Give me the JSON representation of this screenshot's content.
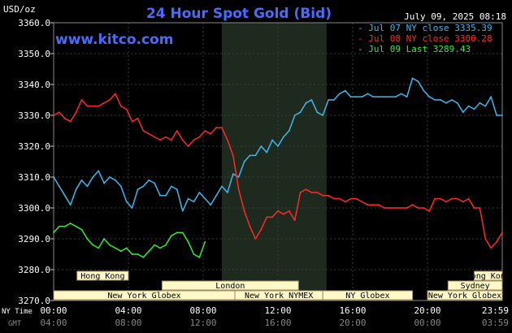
{
  "header": {
    "unit": "USD/oz",
    "title": "24 Hour Spot Gold (Bid)",
    "datetime": "July 09, 2025 08:18",
    "watermark": "www.kitco.com"
  },
  "legend": [
    {
      "text": "- Jul 07 NY close 3335.39",
      "color": "#3fb7f0"
    },
    {
      "text": "- Jul 08 NY close 3300.28",
      "color": "#ff2a2a"
    },
    {
      "text": "- Jul 09 Last 3289.43",
      "color": "#33ee33"
    }
  ],
  "sessions": [
    {
      "label": "Hong Kong",
      "start": 1.25,
      "end": 4.0
    },
    {
      "label": "Hong Kong",
      "start": 22.5,
      "end": 24.0
    },
    {
      "label": "London",
      "start": 5.8,
      "end": 13.1
    },
    {
      "label": "Sydney",
      "start": 21.1,
      "end": 24.0
    },
    {
      "label": "New York Globex",
      "start": 0.0,
      "end": 9.7
    },
    {
      "label": "New York NYMEX",
      "start": 9.7,
      "end": 14.4
    },
    {
      "label": "NY Globex",
      "start": 14.4,
      "end": 19.2
    },
    {
      "label": "New York Globex",
      "start": 20.0,
      "end": 24.0
    }
  ],
  "shade": {
    "start": 9.0,
    "end": 14.6
  },
  "time_labels": {
    "ny_label": "NY Time",
    "gmt_label": "GMT",
    "ny": [
      "00:00",
      "04:00",
      "08:00",
      "12:00",
      "16:00",
      "20:00",
      "23:59"
    ],
    "gmt": [
      "04:00",
      "08:00",
      "12:00",
      "16:00",
      "20:00",
      "00:00",
      "03:59"
    ]
  },
  "chart_data": {
    "type": "line",
    "title": "24 Hour Spot Gold (Bid)",
    "ylabel": "USD/oz",
    "ylim": [
      3270,
      3360
    ],
    "yticks": [
      "3270.0",
      "3280.0",
      "3290.0",
      "3300.0",
      "3310.0",
      "3320.0",
      "3330.0",
      "3340.0",
      "3350.0",
      "3360.0"
    ],
    "xlim": [
      0,
      24
    ],
    "x_unit": "hours NY time",
    "series": [
      {
        "name": "Jul 07 NY close 3335.39",
        "color": "#3fb7f0",
        "x": [
          0,
          0.3,
          0.6,
          0.9,
          1.2,
          1.5,
          1.8,
          2.1,
          2.4,
          2.7,
          3.0,
          3.3,
          3.6,
          3.9,
          4.2,
          4.5,
          4.8,
          5.1,
          5.4,
          5.7,
          6.0,
          6.3,
          6.6,
          6.9,
          7.2,
          7.5,
          7.8,
          8.1,
          8.4,
          8.7,
          9.0,
          9.3,
          9.6,
          9.9,
          10.2,
          10.5,
          10.8,
          11.1,
          11.4,
          11.7,
          12.0,
          12.3,
          12.6,
          12.9,
          13.2,
          13.5,
          13.8,
          14.1,
          14.4,
          14.7,
          15.0,
          15.3,
          15.6,
          15.9,
          16.2,
          16.5,
          16.8,
          17.1,
          17.4,
          17.7,
          18.0,
          18.3,
          18.6,
          18.9,
          19.2,
          19.5,
          19.8,
          20.1,
          20.4,
          20.7,
          21.0,
          21.3,
          21.6,
          21.9,
          22.2,
          22.5,
          22.8,
          23.1,
          23.4,
          23.7,
          24.0
        ],
        "y": [
          3310,
          3307,
          3304,
          3301,
          3306,
          3309,
          3307,
          3310,
          3312,
          3308,
          3310,
          3309,
          3307,
          3302,
          3300,
          3306,
          3307,
          3309,
          3308,
          3304,
          3304,
          3307,
          3306,
          3299,
          3303,
          3302,
          3305,
          3303,
          3301,
          3304,
          3307,
          3305,
          3311,
          3310,
          3315,
          3317,
          3317,
          3320,
          3318,
          3322,
          3320,
          3323,
          3325,
          3330,
          3331,
          3334,
          3335,
          3331,
          3330,
          3335,
          3335,
          3337,
          3338,
          3336,
          3336,
          3336,
          3337,
          3336,
          3336,
          3336,
          3336,
          3336,
          3337,
          3336,
          3342,
          3341,
          3338,
          3336,
          3335,
          3335,
          3334,
          3335,
          3334,
          3331,
          3333,
          3332,
          3334,
          3333,
          3336,
          3330,
          3330
        ]
      },
      {
        "name": "Jul 08 NY close 3300.28",
        "color": "#ff2a2a",
        "x": [
          0,
          0.3,
          0.6,
          0.9,
          1.2,
          1.5,
          1.8,
          2.1,
          2.4,
          2.7,
          3.0,
          3.3,
          3.6,
          3.9,
          4.2,
          4.5,
          4.8,
          5.1,
          5.4,
          5.7,
          6.0,
          6.3,
          6.6,
          6.9,
          7.2,
          7.5,
          7.8,
          8.1,
          8.4,
          8.7,
          9.0,
          9.3,
          9.6,
          9.9,
          10.2,
          10.5,
          10.8,
          11.1,
          11.4,
          11.7,
          12.0,
          12.3,
          12.6,
          12.9,
          13.2,
          13.5,
          13.8,
          14.1,
          14.4,
          14.7,
          15.0,
          15.3,
          15.6,
          15.9,
          16.2,
          16.5,
          16.8,
          17.1,
          17.4,
          17.7,
          18.0,
          18.3,
          18.6,
          18.9,
          19.2,
          19.5,
          19.8,
          20.1,
          20.4,
          20.7,
          21.0,
          21.3,
          21.6,
          21.9,
          22.2,
          22.5,
          22.8,
          23.1,
          23.4,
          23.7,
          24.0
        ],
        "y": [
          3330,
          3331,
          3329,
          3328,
          3331,
          3335,
          3333,
          3333,
          3333,
          3334,
          3335,
          3337,
          3333,
          3332,
          3328,
          3329,
          3325,
          3324,
          3323,
          3322,
          3323,
          3322,
          3325,
          3322,
          3320,
          3322,
          3323,
          3325,
          3324,
          3326,
          3326,
          3322,
          3317,
          3306,
          3299,
          3294,
          3290,
          3293,
          3297,
          3297,
          3299,
          3298,
          3299,
          3296,
          3305,
          3306,
          3305,
          3305,
          3304,
          3304,
          3303,
          3303,
          3302,
          3303,
          3303,
          3302,
          3301,
          3301,
          3301,
          3300,
          3300,
          3300,
          3300,
          3300,
          3301,
          3300,
          3300,
          3299,
          3303,
          3303,
          3302,
          3303,
          3303,
          3302,
          3303,
          3300,
          3300,
          3290,
          3287,
          3289,
          3292
        ]
      },
      {
        "name": "Jul 09 Last 3289.43",
        "color": "#33ee33",
        "x": [
          0,
          0.3,
          0.6,
          0.9,
          1.2,
          1.5,
          1.8,
          2.1,
          2.4,
          2.7,
          3.0,
          3.3,
          3.6,
          3.9,
          4.2,
          4.5,
          4.8,
          5.1,
          5.4,
          5.7,
          6.0,
          6.3,
          6.6,
          6.9,
          7.2,
          7.5,
          7.8,
          8.1
        ],
        "y": [
          3292,
          3294,
          3294,
          3295,
          3294,
          3293,
          3290,
          3288,
          3287,
          3290,
          3288,
          3287,
          3286,
          3287,
          3285,
          3285,
          3284,
          3286,
          3288,
          3287,
          3288,
          3291,
          3292,
          3292,
          3289,
          3285,
          3284,
          3289
        ]
      }
    ]
  }
}
